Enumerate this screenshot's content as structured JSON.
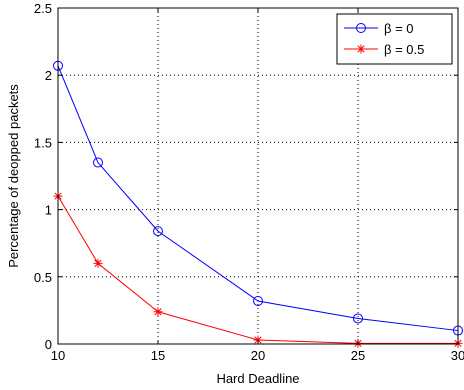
{
  "chart_data": {
    "type": "line",
    "title": "",
    "xlabel": "Hard Deadline",
    "ylabel": "Percentage of deopped packets",
    "xlim": [
      10,
      30
    ],
    "ylim": [
      0,
      2.5
    ],
    "xticks": [
      10,
      15,
      20,
      25,
      30
    ],
    "yticks": [
      0,
      0.5,
      1,
      1.5,
      2,
      2.5
    ],
    "xtick_labels": [
      "10",
      "15",
      "20",
      "25",
      "30"
    ],
    "ytick_labels": [
      "0",
      "0.5",
      "1",
      "1.5",
      "2",
      "2.5"
    ],
    "grid": true,
    "legend_position": "top-right",
    "x": [
      10,
      12,
      15,
      20,
      25,
      30
    ],
    "series": [
      {
        "name": "β = 0",
        "values": [
          2.07,
          1.35,
          0.84,
          0.32,
          0.19,
          0.1
        ],
        "color": "#0000ff",
        "marker": "circle"
      },
      {
        "name": "β = 0.5",
        "values": [
          1.1,
          0.6,
          0.24,
          0.03,
          0.005,
          0.005
        ],
        "color": "#ff0000",
        "marker": "star"
      }
    ]
  }
}
